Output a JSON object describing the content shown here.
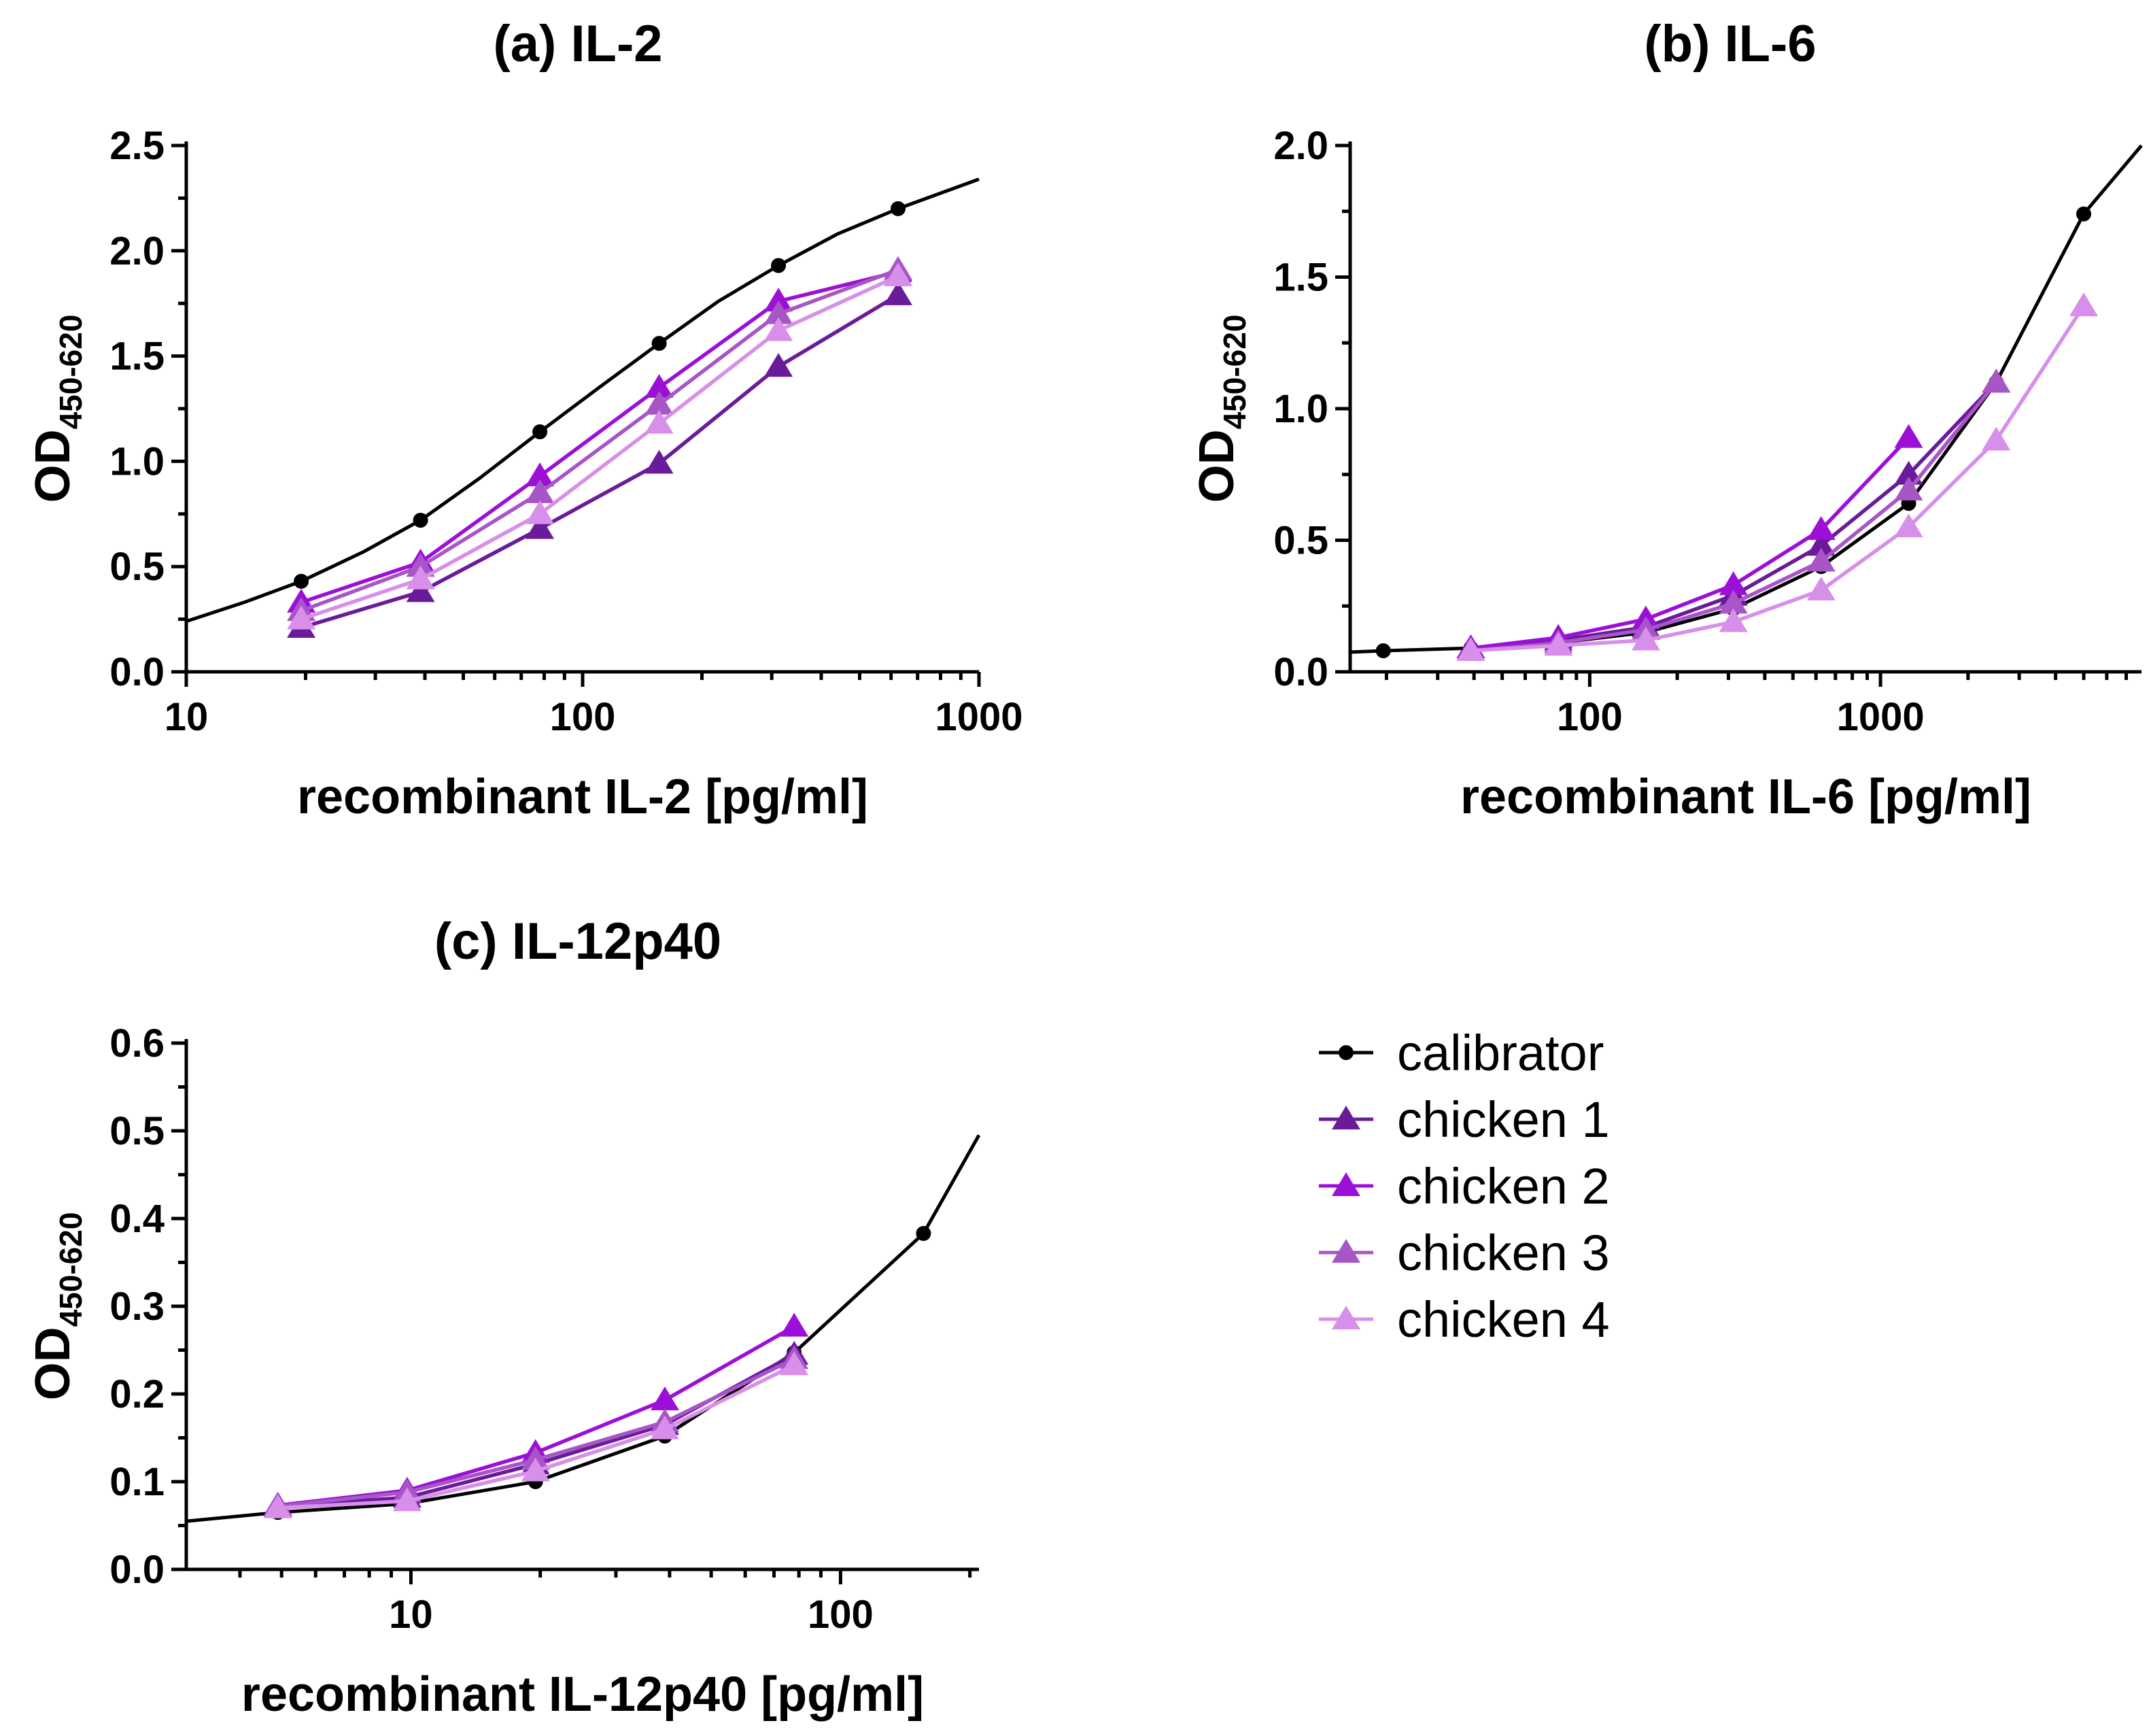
{
  "chart_data": [
    {
      "type": "line",
      "panel": "a",
      "title": "(a) IL-2",
      "xlabel": "recombinant IL-2 [pg/ml]",
      "ylabel": "OD",
      "ylabel_sub": "450-620",
      "xscale": "log",
      "xlim": [
        10,
        1000
      ],
      "ylim": [
        0,
        2.5
      ],
      "xticks": [
        10,
        100,
        1000
      ],
      "xtick_labels": [
        "10",
        "100",
        "1000"
      ],
      "yticks": [
        0,
        0.5,
        1.0,
        1.5,
        2.0,
        2.5
      ],
      "ytick_labels": [
        "0.0",
        "0.5",
        "1.0",
        "1.5",
        "2.0",
        "2.5"
      ],
      "grid": false,
      "series": [
        {
          "name": "calibrator",
          "x": [
            19.5,
            39,
            78,
            156,
            312,
            625
          ],
          "values": [
            0.43,
            0.72,
            1.14,
            1.56,
            1.93,
            2.2
          ],
          "curve": {
            "x": [
              10,
              14,
              19.5,
              28,
              39,
              55,
              78,
              110,
              156,
              220,
              312,
              440,
              625,
              1000
            ],
            "values": [
              0.24,
              0.33,
              0.43,
              0.57,
              0.72,
              0.92,
              1.14,
              1.35,
              1.56,
              1.76,
              1.93,
              2.08,
              2.2,
              2.34
            ]
          }
        },
        {
          "name": "chicken 1",
          "x": [
            19.5,
            39,
            78,
            156,
            312,
            625
          ],
          "values": [
            0.21,
            0.38,
            0.68,
            0.99,
            1.45,
            1.79
          ]
        },
        {
          "name": "chicken 2",
          "x": [
            19.5,
            39,
            78,
            156,
            312,
            625
          ],
          "values": [
            0.33,
            0.52,
            0.93,
            1.35,
            1.76,
            1.9
          ]
        },
        {
          "name": "chicken 3",
          "x": [
            19.5,
            39,
            78,
            156,
            312,
            625
          ],
          "values": [
            0.29,
            0.5,
            0.85,
            1.27,
            1.7,
            1.91
          ]
        },
        {
          "name": "chicken 4",
          "x": [
            19.5,
            39,
            78,
            156,
            312,
            625
          ],
          "values": [
            0.25,
            0.44,
            0.75,
            1.18,
            1.62,
            1.88
          ]
        }
      ]
    },
    {
      "type": "line",
      "panel": "b",
      "title": "(b) IL-6",
      "xlabel": "recombinant IL-6 [pg/ml]",
      "ylabel": "OD",
      "ylabel_sub": "450-620",
      "xscale": "log",
      "xlim": [
        15,
        7900
      ],
      "ylim": [
        0,
        2.0
      ],
      "xticks": [
        100,
        1000
      ],
      "xtick_labels": [
        "100",
        "1000"
      ],
      "yticks": [
        0,
        0.5,
        1.0,
        1.5,
        2.0
      ],
      "ytick_labels": [
        "0.0",
        "0.5",
        "1.0",
        "1.5",
        "2.0"
      ],
      "grid": false,
      "series": [
        {
          "name": "calibrator",
          "x": [
            19.5,
            39,
            78,
            156,
            312,
            625,
            1250,
            2500,
            5000
          ],
          "values": [
            0.08,
            0.09,
            0.11,
            0.15,
            0.24,
            0.4,
            0.64,
            1.1,
            1.74
          ],
          "curve": {
            "x": [
              15,
              19.5,
              39,
              78,
              156,
              312,
              625,
              1250,
              2500,
              5000,
              7900
            ],
            "values": [
              0.075,
              0.08,
              0.09,
              0.11,
              0.15,
              0.24,
              0.4,
              0.64,
              1.1,
              1.74,
              2.0
            ]
          }
        },
        {
          "name": "chicken 1",
          "x": [
            39,
            78,
            156,
            312,
            625,
            1250,
            2500
          ],
          "values": [
            0.09,
            0.12,
            0.17,
            0.29,
            0.48,
            0.75,
            1.1
          ]
        },
        {
          "name": "chicken 2",
          "x": [
            39,
            78,
            156,
            312,
            625,
            1250
          ],
          "values": [
            0.09,
            0.13,
            0.2,
            0.33,
            0.54,
            0.89
          ]
        },
        {
          "name": "chicken 3",
          "x": [
            39,
            78,
            156,
            312,
            625,
            1250,
            2500
          ],
          "values": [
            0.08,
            0.11,
            0.16,
            0.26,
            0.42,
            0.69,
            1.1
          ]
        },
        {
          "name": "chicken 4",
          "x": [
            39,
            78,
            156,
            312,
            625,
            1250,
            2500,
            5000
          ],
          "values": [
            0.08,
            0.1,
            0.12,
            0.19,
            0.31,
            0.55,
            0.88,
            1.39
          ]
        }
      ]
    },
    {
      "type": "line",
      "panel": "c",
      "title": "(c) IL-12p40",
      "xlabel": "recombinant IL-12p40 [pg/ml]",
      "ylabel": "OD",
      "ylabel_sub": "450-620",
      "xscale": "log",
      "xlim": [
        3,
        210
      ],
      "ylim": [
        0,
        0.6
      ],
      "xticks": [
        10,
        100
      ],
      "xtick_labels": [
        "10",
        "100"
      ],
      "yticks": [
        0,
        0.1,
        0.2,
        0.3,
        0.4,
        0.5,
        0.6
      ],
      "ytick_labels": [
        "0.0",
        "0.1",
        "0.2",
        "0.3",
        "0.4",
        "0.5",
        "0.6"
      ],
      "grid": false,
      "series": [
        {
          "name": "calibrator",
          "x": [
            4.9,
            9.8,
            19.5,
            39,
            78,
            156
          ],
          "values": [
            0.065,
            0.075,
            0.1,
            0.152,
            0.247,
            0.383
          ],
          "curve": {
            "x": [
              3,
              4.9,
              9.8,
              19.5,
              39,
              78,
              156,
              210
            ],
            "values": [
              0.055,
              0.065,
              0.075,
              0.1,
              0.152,
              0.247,
              0.383,
              0.495
            ]
          }
        },
        {
          "name": "chicken 1",
          "x": [
            4.9,
            9.8,
            19.5,
            39,
            78
          ],
          "values": [
            0.072,
            0.082,
            0.12,
            0.165,
            0.245
          ]
        },
        {
          "name": "chicken 2",
          "x": [
            4.9,
            9.8,
            19.5,
            39,
            78
          ],
          "values": [
            0.073,
            0.09,
            0.133,
            0.193,
            0.277
          ]
        },
        {
          "name": "chicken 3",
          "x": [
            4.9,
            9.8,
            19.5,
            39,
            78
          ],
          "values": [
            0.072,
            0.088,
            0.125,
            0.168,
            0.24
          ]
        },
        {
          "name": "chicken 4",
          "x": [
            4.9,
            9.8,
            19.5,
            39,
            78
          ],
          "values": [
            0.07,
            0.078,
            0.112,
            0.16,
            0.233
          ]
        }
      ]
    }
  ],
  "legend": {
    "placement": "bottom-right",
    "items": [
      {
        "name": "calibrator",
        "marker": "circle",
        "color": "#000000"
      },
      {
        "name": "chicken 1",
        "marker": "triangle",
        "color": "#6A1B9A"
      },
      {
        "name": "chicken 2",
        "marker": "triangle",
        "color": "#9C0FD6"
      },
      {
        "name": "chicken 3",
        "marker": "triangle",
        "color": "#A855C8"
      },
      {
        "name": "chicken 4",
        "marker": "triangle",
        "color": "#D78FEA"
      }
    ]
  }
}
